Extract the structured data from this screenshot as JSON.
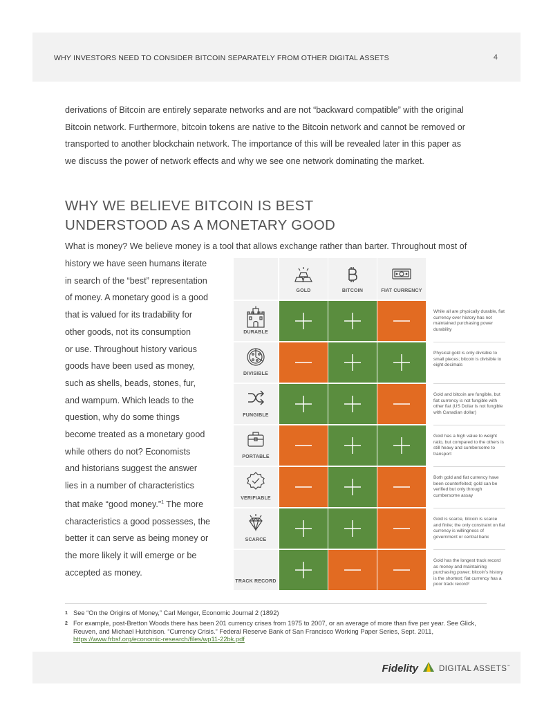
{
  "header": {
    "title": "WHY INVESTORS NEED TO CONSIDER BITCOIN SEPARATELY FROM OTHER DIGITAL ASSETS",
    "page_number": "4"
  },
  "intro_lines": [
    "derivations of Bitcoin are entirely separate networks and are not “backward compatible” with the original",
    "Bitcoin network. Furthermore, bitcoin tokens are native to the Bitcoin network and cannot be removed or",
    "transported to another blockchain network. The importance of this will be revealed later in this paper as",
    "we discuss the power of network effects and why we see one network dominating the market."
  ],
  "section_title": [
    "WHY WE BELIEVE BITCOIN IS BEST",
    "UNDERSTOOD AS A MONETARY GOOD"
  ],
  "lead_line": "What is money? We believe money is a tool that allows exchange rather than barter. Throughout most of",
  "column_lines": [
    "history we have seen humans iterate",
    "in search of the “best” representation",
    "of money. A monetary good is a good",
    "that is valued for its tradability for",
    "other goods, not its consumption",
    "or use. Throughout history various",
    "goods have been used as money,",
    "such as shells, beads, stones, fur,",
    "and wampum. Which leads to the",
    "question, why do some things",
    "become treated as a monetary good",
    "while others do not? Economists",
    "and historians suggest the answer",
    "lies in a number of characteristics",
    "that make “good money.”",
    "characteristics a good possesses, the",
    "better it can serve as being money or",
    "the more likely it will emerge or be",
    "accepted as money."
  ],
  "column_sup": "1",
  "column_line_tail": " The more",
  "table": {
    "columns": [
      {
        "label": "GOLD",
        "icon": "gold-bars-icon"
      },
      {
        "label": "BITCOIN",
        "icon": "bitcoin-icon"
      },
      {
        "label": "FIAT CURRENCY",
        "icon": "banknote-icon"
      }
    ],
    "rows": [
      {
        "label": "DURABLE",
        "icon": "castle-icon",
        "values": [
          "plus",
          "plus",
          "minus"
        ],
        "note": "While all are physically durable, fiat currency over history has not maintained purchasing power durability"
      },
      {
        "label": "DIVISIBLE",
        "icon": "pizza-icon",
        "values": [
          "minus",
          "plus",
          "plus"
        ],
        "note": "Physical gold is only divisible to small pieces; bitcoin is divisible to eight decimals"
      },
      {
        "label": "FUNGIBLE",
        "icon": "shuffle-icon",
        "values": [
          "plus",
          "plus",
          "minus"
        ],
        "note": "Gold and bitcoin are fungible, but fiat currency is not fungible with other fiat (US Dollar is not fungible with Canadian dollar)"
      },
      {
        "label": "PORTABLE",
        "icon": "briefcase-icon",
        "values": [
          "minus",
          "plus",
          "plus"
        ],
        "note": "Gold has a high value to weight ratio, but compared to the others is still heavy and cumbersome to transport"
      },
      {
        "label": "VERIFIABLE",
        "icon": "verified-badge-icon",
        "values": [
          "minus",
          "plus",
          "minus"
        ],
        "note": "Both gold and fiat currency have been counterfeited; gold can be verified but only through cumbersome assay"
      },
      {
        "label": "SCARCE",
        "icon": "diamond-icon",
        "values": [
          "plus",
          "plus",
          "minus"
        ],
        "note": "Gold is scarce, bitcoin is scarce and finite; the only constraint on fiat currency is willingness of government or central bank"
      },
      {
        "label": "TRACK RECORD",
        "icon": "",
        "values": [
          "plus",
          "minus",
          "minus"
        ],
        "note": "Gold has the longest track record as money and maintaining purchasing power; bitcoin’s history is the shortest; fiat currency has a poor track record²"
      }
    ]
  },
  "footnotes": [
    {
      "num": "1",
      "text": "See “On the Origins of Money,” Carl Menger, Economic Journal 2 (1892)"
    },
    {
      "num": "2",
      "text": "For example, post-Bretton Woods there has been 201 currency crises from 1975 to 2007, or an average of more than five per year. See Glick, Reuven, and Michael Hutchison. “Currency Crisis.” Federal Reserve Bank of San Francisco Working Paper Series, Sept. 2011,",
      "link": "https://www.frbsf.org/economic-research/files/wp11-22bk.pdf"
    }
  ],
  "footer": {
    "brand_name": "Fidelity",
    "brand_sub": "DIGITAL ASSETS",
    "brand_mark": "℠",
    "logo_icon": "pyramid-logo-icon"
  },
  "colors": {
    "plus": "#5a8d3e",
    "minus": "#e26b22",
    "panel": "#f2f2f2"
  }
}
